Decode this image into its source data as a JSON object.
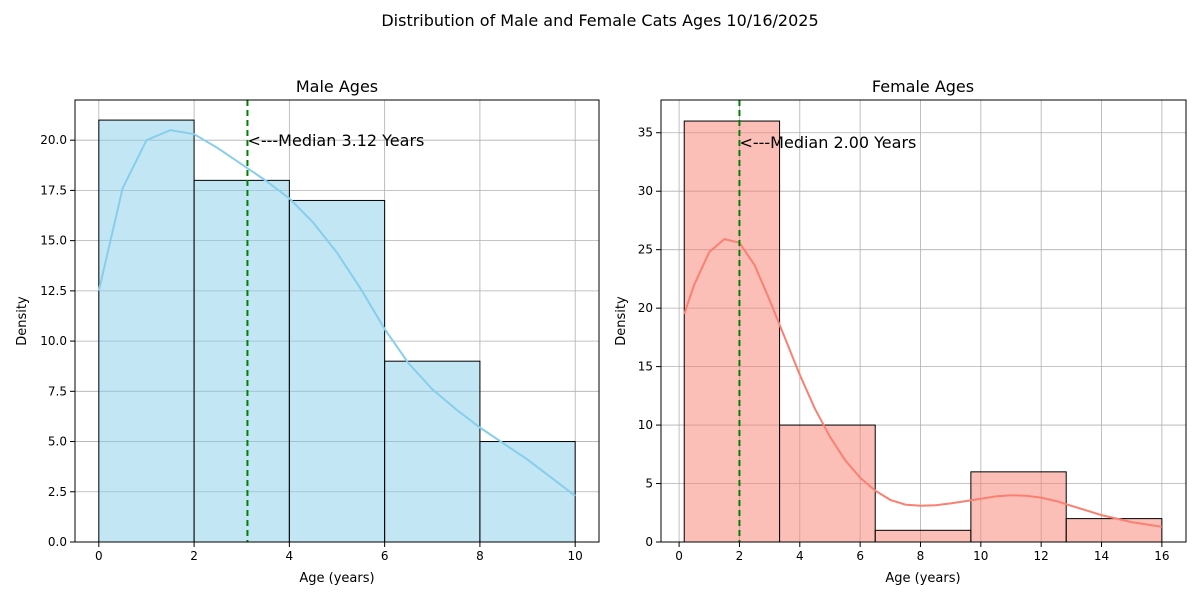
{
  "figure": {
    "suptitle": "Distribution of Male and Female Cats Ages 10/16/2025"
  },
  "chart_data": [
    {
      "type": "bar",
      "title": "Male Ages",
      "xlabel": "Age (years)",
      "ylabel": "Density",
      "xlim": [
        -0.5,
        10.5
      ],
      "ylim": [
        0,
        22
      ],
      "xticks": [
        0,
        2,
        4,
        6,
        8,
        10
      ],
      "xtick_labels": [
        "0",
        "2",
        "4",
        "6",
        "8",
        "10"
      ],
      "yticks": [
        0,
        2.5,
        5,
        7.5,
        10,
        12.5,
        15,
        17.5,
        20
      ],
      "ytick_labels": [
        "0.0",
        "2.5",
        "5.0",
        "7.5",
        "10.0",
        "12.5",
        "15.0",
        "17.5",
        "20.0"
      ],
      "grid": true,
      "bins": [
        {
          "x0": 0,
          "x1": 2,
          "value": 21
        },
        {
          "x0": 2,
          "x1": 4,
          "value": 18
        },
        {
          "x0": 4,
          "x1": 6,
          "value": 17
        },
        {
          "x0": 6,
          "x1": 8,
          "value": 9
        },
        {
          "x0": 8,
          "x1": 10,
          "value": 5
        }
      ],
      "kde": [
        [
          0,
          12.5
        ],
        [
          0.5,
          17.6
        ],
        [
          1,
          20.0
        ],
        [
          1.5,
          20.5
        ],
        [
          2,
          20.3
        ],
        [
          2.5,
          19.6
        ],
        [
          3,
          18.8
        ],
        [
          3.5,
          18.0
        ],
        [
          4,
          17.1
        ],
        [
          4.5,
          15.9
        ],
        [
          5,
          14.4
        ],
        [
          5.5,
          12.6
        ],
        [
          6,
          10.6
        ],
        [
          6.5,
          8.9
        ],
        [
          7,
          7.6
        ],
        [
          7.5,
          6.6
        ],
        [
          8,
          5.7
        ],
        [
          8.5,
          4.9
        ],
        [
          9,
          4.1
        ],
        [
          9.5,
          3.2
        ],
        [
          10,
          2.3
        ]
      ],
      "median": 3.12,
      "median_label": "<---Median 3.12 Years",
      "median_label_y": 20,
      "fill_color": "#87ceeb",
      "kde_color": "#87ceeb",
      "median_color": "#008000"
    },
    {
      "type": "bar",
      "title": "Female Ages",
      "xlabel": "Age (years)",
      "ylabel": "Density",
      "xlim": [
        -0.6,
        16.8
      ],
      "ylim": [
        0,
        37.8
      ],
      "xticks": [
        0,
        2,
        4,
        6,
        8,
        10,
        12,
        14,
        16
      ],
      "xtick_labels": [
        "0",
        "2",
        "4",
        "6",
        "8",
        "10",
        "12",
        "14",
        "16"
      ],
      "yticks": [
        0,
        5,
        10,
        15,
        20,
        25,
        30,
        35
      ],
      "ytick_labels": [
        "0",
        "5",
        "10",
        "15",
        "20",
        "25",
        "30",
        "35"
      ],
      "grid": true,
      "bins": [
        {
          "x0": 0.17,
          "x1": 3.33,
          "value": 36
        },
        {
          "x0": 3.33,
          "x1": 6.5,
          "value": 10
        },
        {
          "x0": 6.5,
          "x1": 9.67,
          "value": 1
        },
        {
          "x0": 9.67,
          "x1": 12.83,
          "value": 6
        },
        {
          "x0": 12.83,
          "x1": 16,
          "value": 2
        }
      ],
      "kde": [
        [
          0.17,
          19.5
        ],
        [
          0.5,
          22.0
        ],
        [
          1,
          24.8
        ],
        [
          1.5,
          25.9
        ],
        [
          2,
          25.6
        ],
        [
          2.5,
          23.7
        ],
        [
          3,
          20.7
        ],
        [
          3.5,
          17.5
        ],
        [
          4,
          14.3
        ],
        [
          4.5,
          11.4
        ],
        [
          5,
          9.0
        ],
        [
          5.5,
          7.0
        ],
        [
          6,
          5.5
        ],
        [
          6.5,
          4.4
        ],
        [
          7,
          3.6
        ],
        [
          7.5,
          3.2
        ],
        [
          8,
          3.1
        ],
        [
          8.5,
          3.15
        ],
        [
          9,
          3.3
        ],
        [
          9.5,
          3.5
        ],
        [
          10,
          3.7
        ],
        [
          10.5,
          3.9
        ],
        [
          11,
          4.0
        ],
        [
          11.5,
          3.95
        ],
        [
          12,
          3.8
        ],
        [
          12.5,
          3.5
        ],
        [
          13,
          3.1
        ],
        [
          13.5,
          2.7
        ],
        [
          14,
          2.3
        ],
        [
          14.5,
          2.0
        ],
        [
          15,
          1.7
        ],
        [
          15.5,
          1.5
        ],
        [
          16,
          1.3
        ]
      ],
      "median": 2.0,
      "median_label": "<---Median 2.00 Years",
      "median_label_y": 34.2,
      "fill_color": "#fa8072",
      "kde_color": "#fa8072",
      "median_color": "#008000"
    }
  ]
}
